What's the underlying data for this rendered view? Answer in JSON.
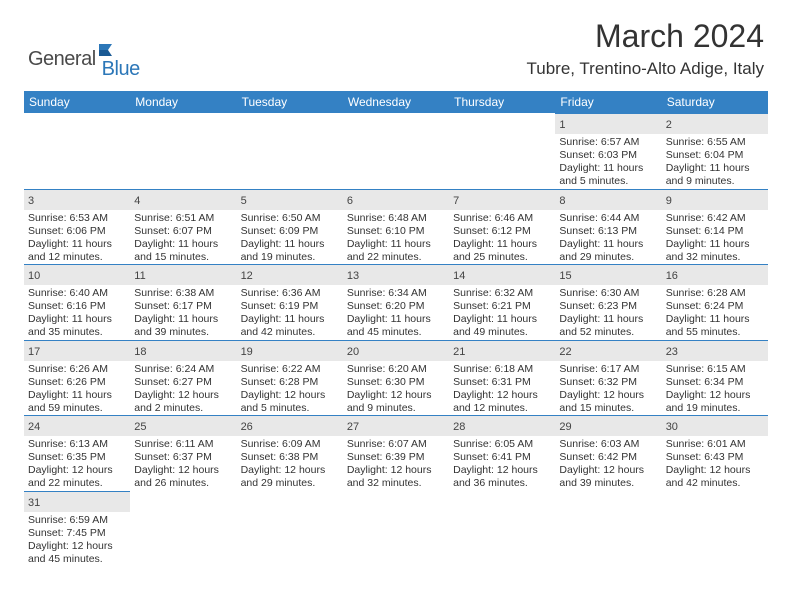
{
  "brand": {
    "general": "General",
    "blue": "Blue"
  },
  "title": "March 2024",
  "location": "Tubre, Trentino-Alto Adige, Italy",
  "colors": {
    "header_bg": "#3481c4",
    "header_text": "#ffffff",
    "daynum_bg": "#e8e8e8",
    "rule": "#3481c4",
    "body_text": "#333333",
    "logo_gray": "#4a4a4a",
    "logo_blue": "#2c77b8"
  },
  "day_headers": [
    "Sunday",
    "Monday",
    "Tuesday",
    "Wednesday",
    "Thursday",
    "Friday",
    "Saturday"
  ],
  "weeks": [
    [
      null,
      null,
      null,
      null,
      null,
      {
        "n": "1",
        "sr": "6:57 AM",
        "ss": "6:03 PM",
        "dl": "11 hours and 5 minutes."
      },
      {
        "n": "2",
        "sr": "6:55 AM",
        "ss": "6:04 PM",
        "dl": "11 hours and 9 minutes."
      }
    ],
    [
      {
        "n": "3",
        "sr": "6:53 AM",
        "ss": "6:06 PM",
        "dl": "11 hours and 12 minutes."
      },
      {
        "n": "4",
        "sr": "6:51 AM",
        "ss": "6:07 PM",
        "dl": "11 hours and 15 minutes."
      },
      {
        "n": "5",
        "sr": "6:50 AM",
        "ss": "6:09 PM",
        "dl": "11 hours and 19 minutes."
      },
      {
        "n": "6",
        "sr": "6:48 AM",
        "ss": "6:10 PM",
        "dl": "11 hours and 22 minutes."
      },
      {
        "n": "7",
        "sr": "6:46 AM",
        "ss": "6:12 PM",
        "dl": "11 hours and 25 minutes."
      },
      {
        "n": "8",
        "sr": "6:44 AM",
        "ss": "6:13 PM",
        "dl": "11 hours and 29 minutes."
      },
      {
        "n": "9",
        "sr": "6:42 AM",
        "ss": "6:14 PM",
        "dl": "11 hours and 32 minutes."
      }
    ],
    [
      {
        "n": "10",
        "sr": "6:40 AM",
        "ss": "6:16 PM",
        "dl": "11 hours and 35 minutes."
      },
      {
        "n": "11",
        "sr": "6:38 AM",
        "ss": "6:17 PM",
        "dl": "11 hours and 39 minutes."
      },
      {
        "n": "12",
        "sr": "6:36 AM",
        "ss": "6:19 PM",
        "dl": "11 hours and 42 minutes."
      },
      {
        "n": "13",
        "sr": "6:34 AM",
        "ss": "6:20 PM",
        "dl": "11 hours and 45 minutes."
      },
      {
        "n": "14",
        "sr": "6:32 AM",
        "ss": "6:21 PM",
        "dl": "11 hours and 49 minutes."
      },
      {
        "n": "15",
        "sr": "6:30 AM",
        "ss": "6:23 PM",
        "dl": "11 hours and 52 minutes."
      },
      {
        "n": "16",
        "sr": "6:28 AM",
        "ss": "6:24 PM",
        "dl": "11 hours and 55 minutes."
      }
    ],
    [
      {
        "n": "17",
        "sr": "6:26 AM",
        "ss": "6:26 PM",
        "dl": "11 hours and 59 minutes."
      },
      {
        "n": "18",
        "sr": "6:24 AM",
        "ss": "6:27 PM",
        "dl": "12 hours and 2 minutes."
      },
      {
        "n": "19",
        "sr": "6:22 AM",
        "ss": "6:28 PM",
        "dl": "12 hours and 5 minutes."
      },
      {
        "n": "20",
        "sr": "6:20 AM",
        "ss": "6:30 PM",
        "dl": "12 hours and 9 minutes."
      },
      {
        "n": "21",
        "sr": "6:18 AM",
        "ss": "6:31 PM",
        "dl": "12 hours and 12 minutes."
      },
      {
        "n": "22",
        "sr": "6:17 AM",
        "ss": "6:32 PM",
        "dl": "12 hours and 15 minutes."
      },
      {
        "n": "23",
        "sr": "6:15 AM",
        "ss": "6:34 PM",
        "dl": "12 hours and 19 minutes."
      }
    ],
    [
      {
        "n": "24",
        "sr": "6:13 AM",
        "ss": "6:35 PM",
        "dl": "12 hours and 22 minutes."
      },
      {
        "n": "25",
        "sr": "6:11 AM",
        "ss": "6:37 PM",
        "dl": "12 hours and 26 minutes."
      },
      {
        "n": "26",
        "sr": "6:09 AM",
        "ss": "6:38 PM",
        "dl": "12 hours and 29 minutes."
      },
      {
        "n": "27",
        "sr": "6:07 AM",
        "ss": "6:39 PM",
        "dl": "12 hours and 32 minutes."
      },
      {
        "n": "28",
        "sr": "6:05 AM",
        "ss": "6:41 PM",
        "dl": "12 hours and 36 minutes."
      },
      {
        "n": "29",
        "sr": "6:03 AM",
        "ss": "6:42 PM",
        "dl": "12 hours and 39 minutes."
      },
      {
        "n": "30",
        "sr": "6:01 AM",
        "ss": "6:43 PM",
        "dl": "12 hours and 42 minutes."
      }
    ],
    [
      {
        "n": "31",
        "sr": "6:59 AM",
        "ss": "7:45 PM",
        "dl": "12 hours and 45 minutes."
      },
      null,
      null,
      null,
      null,
      null,
      null
    ]
  ],
  "labels": {
    "sunrise": "Sunrise:",
    "sunset": "Sunset:",
    "daylight": "Daylight:"
  }
}
